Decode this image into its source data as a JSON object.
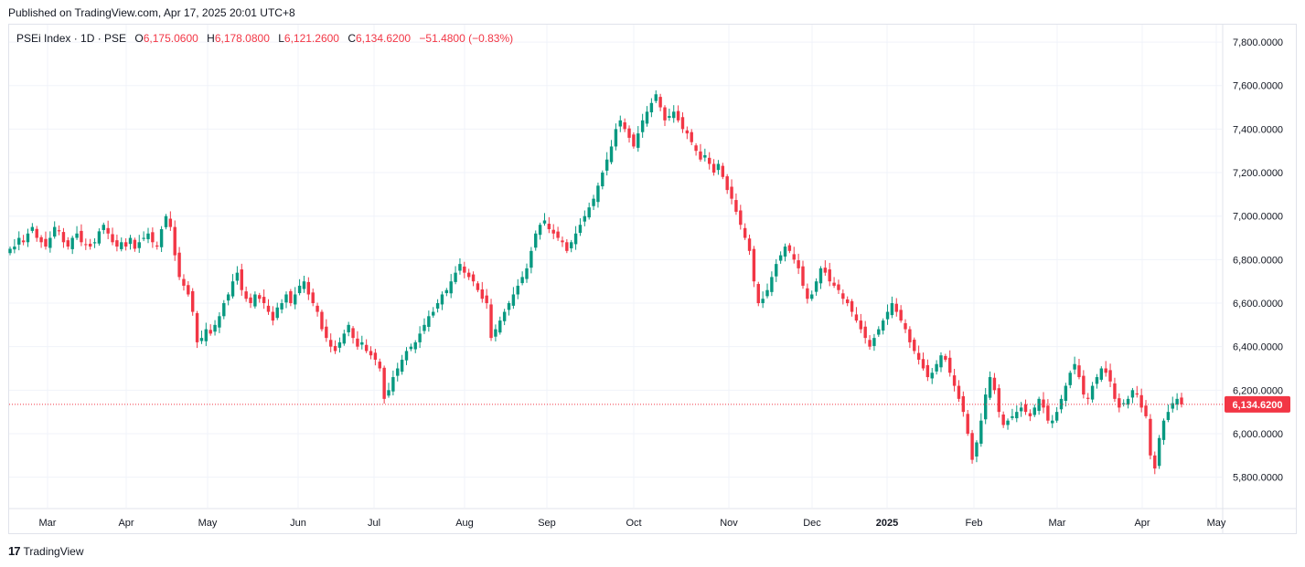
{
  "header": {
    "published": "Published on TradingView.com, Apr 17, 2025 20:01 UTC+8"
  },
  "legend": {
    "symbol": "PSEi Index · 1D · PSE",
    "o_label": "O",
    "o_value": "6,175.0600",
    "h_label": "H",
    "h_value": "6,178.0800",
    "l_label": "L",
    "l_value": "6,121.2600",
    "c_label": "C",
    "c_value": "6,134.6200",
    "change": "−51.4800 (−0.83%)"
  },
  "last_price_label": "6,134.6200",
  "footer": {
    "brand_logo": "17",
    "brand_name": "TradingView"
  },
  "colors": {
    "up": "#089981",
    "down": "#f23645",
    "grid": "#f0f3fa",
    "price_tag": "#f23645"
  },
  "chart_data": {
    "type": "candlestick",
    "title": "PSEi Index · 1D · PSE",
    "y_ticks": [
      "7,800.0000",
      "7,600.0000",
      "7,400.0000",
      "7,200.0000",
      "7,000.0000",
      "6,800.0000",
      "6,600.0000",
      "6,400.0000",
      "6,200.0000",
      "6,000.0000",
      "5,800.0000"
    ],
    "y_tick_values": [
      7800,
      7600,
      7400,
      7200,
      7000,
      6800,
      6600,
      6400,
      6200,
      6000,
      5800
    ],
    "x_ticks": [
      "Mar",
      "Apr",
      "May",
      "Jun",
      "Jul",
      "Aug",
      "Sep",
      "Oct",
      "Nov",
      "Dec",
      "2025",
      "Feb",
      "Mar",
      "Apr",
      "May"
    ],
    "ylim": [
      5660,
      7880
    ],
    "grid": true,
    "last_close": 6134.62,
    "close_series": [
      6850,
      6860,
      6900,
      6880,
      6920,
      6950,
      6900,
      6880,
      6860,
      6900,
      6950,
      6930,
      6880,
      6860,
      6900,
      6920,
      6880,
      6870,
      6860,
      6880,
      6930,
      6960,
      6920,
      6880,
      6860,
      6880,
      6860,
      6900,
      6850,
      6880,
      6900,
      6920,
      6880,
      6860,
      6940,
      7000,
      6950,
      6820,
      6720,
      6680,
      6640,
      6560,
      6420,
      6440,
      6480,
      6460,
      6500,
      6540,
      6600,
      6640,
      6700,
      6740,
      6660,
      6620,
      6600,
      6640,
      6620,
      6600,
      6560,
      6520,
      6580,
      6600,
      6640,
      6600,
      6640,
      6680,
      6700,
      6640,
      6600,
      6560,
      6480,
      6440,
      6400,
      6380,
      6420,
      6460,
      6500,
      6440,
      6400,
      6420,
      6380,
      6360,
      6340,
      6300,
      6160,
      6200,
      6260,
      6300,
      6340,
      6380,
      6400,
      6420,
      6460,
      6500,
      6540,
      6560,
      6600,
      6640,
      6660,
      6700,
      6740,
      6780,
      6740,
      6720,
      6700,
      6660,
      6620,
      6600,
      6440,
      6480,
      6520,
      6560,
      6600,
      6640,
      6680,
      6720,
      6760,
      6840,
      6920,
      6960,
      6980,
      6940,
      6920,
      6900,
      6880,
      6840,
      6880,
      6920,
      6960,
      7000,
      7040,
      7080,
      7140,
      7200,
      7260,
      7320,
      7400,
      7440,
      7400,
      7360,
      7320,
      7380,
      7440,
      7480,
      7520,
      7560,
      7500,
      7440,
      7460,
      7480,
      7440,
      7400,
      7380,
      7340,
      7300,
      7260,
      7280,
      7240,
      7200,
      7240,
      7180,
      7120,
      7080,
      7020,
      6960,
      6900,
      6840,
      6700,
      6600,
      6620,
      6660,
      6720,
      6780,
      6820,
      6860,
      6840,
      6800,
      6760,
      6680,
      6620,
      6640,
      6700,
      6760,
      6740,
      6700,
      6680,
      6660,
      6620,
      6600,
      6560,
      6520,
      6480,
      6440,
      6400,
      6440,
      6480,
      6520,
      6560,
      6600,
      6560,
      6520,
      6480,
      6420,
      6380,
      6340,
      6300,
      6260,
      6280,
      6320,
      6360,
      6340,
      6280,
      6220,
      6160,
      6100,
      6000,
      5880,
      5960,
      6060,
      6180,
      6260,
      6200,
      6100,
      6040,
      6060,
      6080,
      6100,
      6120,
      6100,
      6080,
      6120,
      6160,
      6120,
      6060,
      6060,
      6100,
      6160,
      6220,
      6280,
      6320,
      6260,
      6180,
      6160,
      6220,
      6260,
      6300,
      6280,
      6240,
      6160,
      6120,
      6140,
      6160,
      6200,
      6180,
      6120,
      6080,
      5900,
      5840,
      5980,
      6060,
      6100,
      6140,
      6160,
      6134.62
    ]
  }
}
